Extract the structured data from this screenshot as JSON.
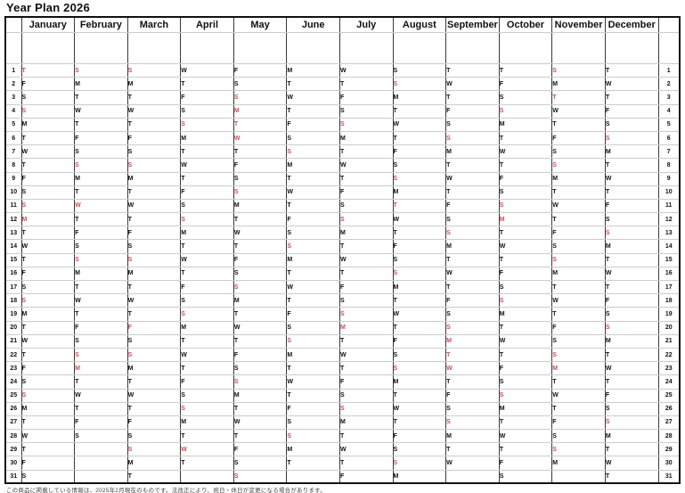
{
  "page": {
    "title": "Year Plan 2026",
    "footer_note": "この商品に掲載している情報は、2025年2月現在のものです。法改正により、祝日・休日が変更になる場合があります。"
  },
  "colors": {
    "highlight_bg": "#f8d2d4",
    "highlight_text": "#cb4f56",
    "grid_dark": "#3a3a3a",
    "grid_light": "#cccccc",
    "outer_border": "#111111"
  },
  "calendar": {
    "year": 2026,
    "day_numbers": [
      1,
      2,
      3,
      4,
      5,
      6,
      7,
      8,
      9,
      10,
      11,
      12,
      13,
      14,
      15,
      16,
      17,
      18,
      19,
      20,
      21,
      22,
      23,
      24,
      25,
      26,
      27,
      28,
      29,
      30,
      31
    ],
    "weekday_letters": [
      "M",
      "T",
      "W",
      "T",
      "F",
      "S",
      "S"
    ],
    "months": [
      {
        "name": "January",
        "letters": "TFSSMTWTFSSMTWTFSSMTWTFSSMTWTFS",
        "highlighted_days": [
          1,
          4,
          11,
          12,
          18,
          25
        ]
      },
      {
        "name": "February",
        "letters": "SMTWTFSSMTWTFSSMTWTFSSMTWTFS",
        "highlighted_days": [
          1,
          8,
          11,
          15,
          22,
          23
        ]
      },
      {
        "name": "March",
        "letters": "SMTWTFSSMTWTFSSMTWTFSSMTWTFSSMT",
        "highlighted_days": [
          1,
          8,
          15,
          20,
          22,
          29
        ]
      },
      {
        "name": "April",
        "letters": "WTFSSMTWTFSSMTWTFSSMTWTFSSMTWT",
        "highlighted_days": [
          5,
          12,
          19,
          26,
          29
        ]
      },
      {
        "name": "May",
        "letters": "FSSMTWTFSSMTWTFSSMTWTFSSMTWTFSS",
        "highlighted_days": [
          3,
          4,
          5,
          6,
          10,
          17,
          24,
          31
        ]
      },
      {
        "name": "June",
        "letters": "MTWTFSSMTWTFSSMTWTFSSMTWTFSSMT",
        "highlighted_days": [
          7,
          14,
          21,
          28
        ]
      },
      {
        "name": "July",
        "letters": "WTFSSMTWTFSSMTWTFSSMTWTFSSMTWTF",
        "highlighted_days": [
          5,
          12,
          19,
          20,
          26
        ]
      },
      {
        "name": "August",
        "letters": "SSMTWTFSSMTWTFSSMTWTFSSMTWTFSSM",
        "highlighted_days": [
          2,
          9,
          11,
          16,
          23,
          30
        ]
      },
      {
        "name": "September",
        "letters": "TWTFSSMTWTFSSMTWTFSSMTWTFSSMTW",
        "highlighted_days": [
          6,
          13,
          20,
          21,
          22,
          23,
          27
        ]
      },
      {
        "name": "October",
        "letters": "TFSSMTWTFSSMTWTFSSMTWTFSSMTWTFS",
        "highlighted_days": [
          4,
          11,
          12,
          18,
          25
        ]
      },
      {
        "name": "November",
        "letters": "SMTWTFSSMTWTFSSMTWTFSSMTWTFSSM",
        "highlighted_days": [
          1,
          3,
          8,
          15,
          22,
          23,
          29
        ]
      },
      {
        "name": "December",
        "letters": "TWTFSSMTWTFSSMTWTFSSMTWTFSSMTWT",
        "highlighted_days": [
          6,
          13,
          20,
          27
        ]
      }
    ]
  }
}
